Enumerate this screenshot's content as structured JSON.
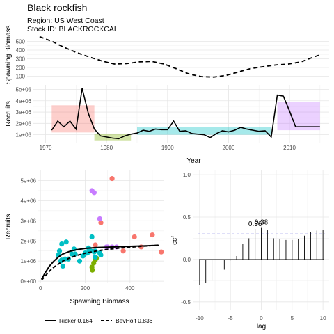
{
  "header": {
    "title": "Black rockfish",
    "region": "Region: US West Coast",
    "stock": "Stock ID: BLACKROCKCAL"
  },
  "chart_data": [
    {
      "id": "spawning_ts",
      "type": "line",
      "ylabel": "Spawning Biomass",
      "xlim": [
        1968,
        2016.5
      ],
      "ylim": [
        80,
        560
      ],
      "yticks": [
        100,
        200,
        300,
        400,
        500
      ],
      "ytick_labels": [
        "100",
        "200",
        "300",
        "400",
        "500"
      ],
      "x": [
        1970,
        1972,
        1974,
        1976,
        1978,
        1980,
        1982,
        1984,
        1986,
        1988,
        1990,
        1992,
        1994,
        1996,
        1998,
        2000,
        2002,
        2004,
        2006,
        2008,
        2010,
        2012,
        2014,
        2015
      ],
      "values": [
        555,
        500,
        430,
        370,
        320,
        275,
        240,
        245,
        265,
        270,
        240,
        185,
        125,
        95,
        90,
        110,
        150,
        190,
        210,
        230,
        240,
        265,
        320,
        345
      ],
      "line_style": "dashed",
      "color": "#000000"
    },
    {
      "id": "recruits_ts",
      "type": "line",
      "ylabel": "Recruits",
      "xlabel": "Year",
      "xlim": [
        1968,
        2016.5
      ],
      "ylim": [
        300000,
        5400000
      ],
      "yticks": [
        1000000,
        2000000,
        3000000,
        4000000,
        5000000
      ],
      "ytick_labels": [
        "1e+06",
        "2e+06",
        "3e+06",
        "4e+06",
        "5e+06"
      ],
      "xticks": [
        1970,
        1980,
        1990,
        2000,
        2010
      ],
      "xtick_labels": [
        "1970",
        "1980",
        "1990",
        "2000",
        "2010"
      ],
      "x": [
        1971,
        1972,
        1973,
        1974,
        1975,
        1976,
        1977,
        1978,
        1979,
        1980,
        1981,
        1982,
        1983,
        1984,
        1985,
        1986,
        1987,
        1988,
        1989,
        1990,
        1991,
        1992,
        1993,
        1994,
        1995,
        1996,
        1997,
        1998,
        1999,
        2000,
        2001,
        2002,
        2003,
        2004,
        2005,
        2006,
        2007,
        2008,
        2009,
        2010,
        2011,
        2012,
        2013,
        2014,
        2015
      ],
      "values": [
        1400000,
        2200000,
        1700000,
        2200000,
        1500000,
        5100000,
        2900000,
        1500000,
        900000,
        800000,
        700000,
        650000,
        900000,
        1050000,
        1150000,
        1400000,
        1300000,
        1500000,
        1450000,
        1450000,
        2200000,
        1300000,
        1350000,
        1100000,
        1050000,
        1000000,
        750000,
        1100000,
        1350000,
        1250000,
        1400000,
        1650000,
        1500000,
        1400000,
        1300000,
        1350000,
        800000,
        4500000,
        4400000,
        3100000,
        1700000,
        1700000,
        1700000,
        1700000,
        1700000
      ],
      "regimes": [
        {
          "start": 1971,
          "end": 1978,
          "ymin": 1200000,
          "ymax": 3600000,
          "color": "#F8766D"
        },
        {
          "start": 1978,
          "end": 1984,
          "ymin": 500000,
          "ymax": 1100000,
          "color": "#7CAE00"
        },
        {
          "start": 1985,
          "end": 2007,
          "ymin": 1000000,
          "ymax": 1700000,
          "color": "#00BFC4"
        },
        {
          "start": 2008,
          "end": 2015,
          "ymin": 1400000,
          "ymax": 3900000,
          "color": "#C77CFF"
        }
      ]
    },
    {
      "id": "stock_recruit",
      "type": "scatter",
      "xlabel": "Spawning Biomass",
      "ylabel": "Recruits",
      "xlim": [
        -10,
        550
      ],
      "ylim": [
        -100000,
        5500000
      ],
      "xticks": [
        0,
        200,
        400
      ],
      "xtick_labels": [
        "0",
        "200",
        "400"
      ],
      "yticks": [
        0,
        1000000,
        2000000,
        3000000,
        4000000,
        5000000
      ],
      "ytick_labels": [
        "0e+00",
        "1e+06",
        "2e+06",
        "3e+06",
        "4e+06",
        "5e+06"
      ],
      "points": [
        {
          "x": 540,
          "y": 1450000,
          "color": "#F8766D"
        },
        {
          "x": 500,
          "y": 2300000,
          "color": "#F8766D"
        },
        {
          "x": 450,
          "y": 1700000,
          "color": "#F8766D"
        },
        {
          "x": 420,
          "y": 2200000,
          "color": "#F8766D"
        },
        {
          "x": 370,
          "y": 1500000,
          "color": "#F8766D"
        },
        {
          "x": 320,
          "y": 5100000,
          "color": "#F8766D"
        },
        {
          "x": 270,
          "y": 2900000,
          "color": "#F8766D"
        },
        {
          "x": 245,
          "y": 1800000,
          "color": "#F8766D"
        },
        {
          "x": 240,
          "y": 1500000,
          "color": "#F8766D"
        },
        {
          "x": 230,
          "y": 700000,
          "color": "#7CAE00"
        },
        {
          "x": 232,
          "y": 550000,
          "color": "#7CAE00"
        },
        {
          "x": 238,
          "y": 900000,
          "color": "#7CAE00"
        },
        {
          "x": 245,
          "y": 1050000,
          "color": "#7CAE00"
        },
        {
          "x": 250,
          "y": 1150000,
          "color": "#7CAE00"
        },
        {
          "x": 265,
          "y": 1400000,
          "color": "#00BFC4"
        },
        {
          "x": 270,
          "y": 1300000,
          "color": "#00BFC4"
        },
        {
          "x": 245,
          "y": 1500000,
          "color": "#00BFC4"
        },
        {
          "x": 240,
          "y": 1450000,
          "color": "#00BFC4"
        },
        {
          "x": 245,
          "y": 1200000,
          "color": "#00BFC4"
        },
        {
          "x": 230,
          "y": 2200000,
          "color": "#00BFC4"
        },
        {
          "x": 195,
          "y": 1300000,
          "color": "#00BFC4"
        },
        {
          "x": 140,
          "y": 1350000,
          "color": "#00BFC4"
        },
        {
          "x": 110,
          "y": 1100000,
          "color": "#00BFC4"
        },
        {
          "x": 95,
          "y": 1050000,
          "color": "#00BFC4"
        },
        {
          "x": 90,
          "y": 1000000,
          "color": "#00BFC4"
        },
        {
          "x": 100,
          "y": 750000,
          "color": "#00BFC4"
        },
        {
          "x": 125,
          "y": 1100000,
          "color": "#00BFC4"
        },
        {
          "x": 155,
          "y": 1350000,
          "color": "#00BFC4"
        },
        {
          "x": 190,
          "y": 1250000,
          "color": "#00BFC4"
        },
        {
          "x": 210,
          "y": 1400000,
          "color": "#00BFC4"
        },
        {
          "x": 215,
          "y": 1650000,
          "color": "#00BFC4"
        },
        {
          "x": 225,
          "y": 1500000,
          "color": "#00BFC4"
        },
        {
          "x": 200,
          "y": 1400000,
          "color": "#00BFC4"
        },
        {
          "x": 80,
          "y": 1300000,
          "color": "#00BFC4"
        },
        {
          "x": 85,
          "y": 1500000,
          "color": "#00BFC4"
        },
        {
          "x": 95,
          "y": 1850000,
          "color": "#00BFC4"
        },
        {
          "x": 115,
          "y": 1950000,
          "color": "#00BFC4"
        },
        {
          "x": 150,
          "y": 1600000,
          "color": "#00BFC4"
        },
        {
          "x": 175,
          "y": 1000000,
          "color": "#00BFC4"
        },
        {
          "x": 230,
          "y": 4500000,
          "color": "#C77CFF"
        },
        {
          "x": 240,
          "y": 4400000,
          "color": "#C77CFF"
        },
        {
          "x": 265,
          "y": 3100000,
          "color": "#C77CFF"
        },
        {
          "x": 300,
          "y": 1700000,
          "color": "#C77CFF"
        },
        {
          "x": 320,
          "y": 1700000,
          "color": "#C77CFF"
        },
        {
          "x": 340,
          "y": 1700000,
          "color": "#C77CFF"
        },
        {
          "x": 295,
          "y": 1700000,
          "color": "#C77CFF"
        }
      ],
      "curves": [
        {
          "name": "Ricker",
          "style": "solid",
          "x": [
            5,
            20,
            40,
            60,
            80,
            100,
            130,
            160,
            200,
            250,
            300,
            350,
            400,
            450,
            500,
            530
          ],
          "y": [
            100000,
            400000,
            750000,
            1000000,
            1200000,
            1350000,
            1480000,
            1560000,
            1630000,
            1670000,
            1690000,
            1710000,
            1730000,
            1750000,
            1770000,
            1780000
          ]
        },
        {
          "name": "BevHolt",
          "style": "dashed",
          "x": [
            5,
            20,
            40,
            60,
            80,
            100,
            130,
            160,
            200,
            250,
            300,
            350,
            400,
            450,
            500,
            530
          ],
          "y": [
            50000,
            250000,
            500000,
            700000,
            850000,
            1000000,
            1150000,
            1270000,
            1390000,
            1500000,
            1580000,
            1640000,
            1690000,
            1730000,
            1770000,
            1790000
          ]
        }
      ],
      "legend": [
        {
          "label": "Ricker 0.164",
          "style": "solid"
        },
        {
          "label": "BevHolt 0.836",
          "style": "dashed"
        }
      ],
      "legend_placement": "bottom"
    },
    {
      "id": "ccf",
      "type": "bar",
      "xlabel": "lag",
      "ylabel": "ccf",
      "xlim": [
        -11,
        11
      ],
      "ylim": [
        -0.6,
        1.05
      ],
      "xticks": [
        -10,
        -5,
        0,
        5,
        10
      ],
      "xtick_labels": [
        "-10",
        "-5",
        "0",
        "5",
        "10"
      ],
      "yticks": [
        -0.5,
        0.0,
        0.5,
        1.0
      ],
      "ytick_labels": [
        "-0.5",
        "0.0",
        "0.5",
        "1.0"
      ],
      "lags": [
        -10,
        -9,
        -8,
        -7,
        -6,
        -5,
        -4,
        -3,
        -2,
        -1,
        0,
        1,
        2,
        3,
        4,
        5,
        6,
        7,
        8,
        9,
        10
      ],
      "values": [
        -0.3,
        -0.28,
        -0.25,
        -0.22,
        -0.12,
        -0.01,
        0.04,
        0.18,
        0.25,
        0.36,
        0.38,
        0.35,
        0.25,
        0.24,
        0.23,
        0.23,
        0.24,
        0.28,
        0.32,
        0.34,
        0.35
      ],
      "threshold": 0.3,
      "annotations": [
        {
          "lag": -1,
          "value": 0.36,
          "label": "0.36"
        },
        {
          "lag": 0,
          "value": 0.38,
          "label": "0.38"
        }
      ]
    }
  ]
}
